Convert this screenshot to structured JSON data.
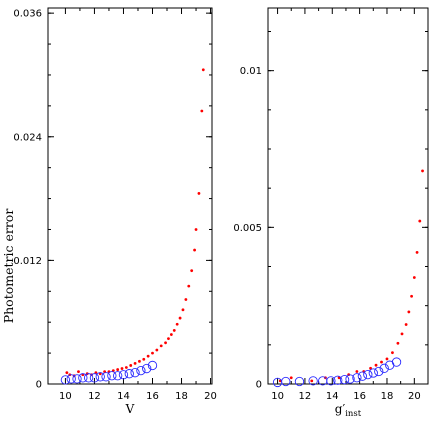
{
  "chart_data": [
    {
      "type": "scatter",
      "panel": "left",
      "xlabel": "V",
      "ylabel": "Photometric  error",
      "xlim": [
        8.8,
        20.1
      ],
      "ylim": [
        0,
        0.0365
      ],
      "xticks": [
        10,
        12,
        14,
        16,
        18,
        20
      ],
      "yticks": [
        0,
        0.012,
        0.024,
        0.036
      ],
      "ytick_labels": [
        "0",
        "0.012",
        "0.024",
        "0.036"
      ],
      "grid": false,
      "series": [
        {
          "marker": "red dot",
          "color": "#ff0000",
          "x": [
            10.1,
            10.3,
            10.6,
            10.9,
            11.2,
            11.5,
            11.8,
            12.1,
            12.4,
            12.7,
            13.0,
            13.3,
            13.6,
            13.9,
            14.2,
            14.5,
            14.8,
            15.1,
            15.4,
            15.7,
            16.0,
            16.3,
            16.6,
            16.9,
            17.1,
            17.3,
            17.5,
            17.7,
            17.9,
            18.1,
            18.3,
            18.5,
            18.7,
            18.9,
            19.0,
            19.2,
            19.4,
            19.5
          ],
          "y": [
            0.0011,
            0.0009,
            0.0008,
            0.0012,
            0.0009,
            0.001,
            0.0009,
            0.0011,
            0.001,
            0.0012,
            0.0012,
            0.0013,
            0.0014,
            0.0015,
            0.0016,
            0.0018,
            0.002,
            0.0022,
            0.0024,
            0.0027,
            0.003,
            0.0033,
            0.0037,
            0.004,
            0.0044,
            0.0048,
            0.0052,
            0.0058,
            0.0064,
            0.0072,
            0.0082,
            0.0095,
            0.011,
            0.013,
            0.015,
            0.0185,
            0.0265,
            0.0305
          ]
        },
        {
          "marker": "blue open circle",
          "color": "#2b2bff",
          "x": [
            10.0,
            10.4,
            10.8,
            11.2,
            11.6,
            12.0,
            12.4,
            12.8,
            13.2,
            13.6,
            14.0,
            14.4,
            14.8,
            15.2,
            15.6,
            16.0
          ],
          "y": [
            0.0004,
            0.0005,
            0.0005,
            0.0006,
            0.0006,
            0.0006,
            0.0007,
            0.0007,
            0.0008,
            0.0008,
            0.0009,
            0.001,
            0.0011,
            0.0013,
            0.0015,
            0.0018
          ]
        }
      ]
    },
    {
      "type": "scatter",
      "panel": "right",
      "xlabel": "g′",
      "xlabel_sub": "inst",
      "ylabel": "",
      "xlim": [
        9.3,
        21.0
      ],
      "ylim": [
        0,
        0.012
      ],
      "xticks": [
        10,
        12,
        14,
        16,
        18,
        20
      ],
      "yticks": [
        0,
        0.005,
        0.01
      ],
      "ytick_labels": [
        "0",
        "0.005",
        "0.01"
      ],
      "grid": false,
      "series": [
        {
          "marker": "red dot",
          "color": "#ff0000",
          "x": [
            10.2,
            11.0,
            12.5,
            13.5,
            14.5,
            15.2,
            15.8,
            16.3,
            16.8,
            17.2,
            17.6,
            18.0,
            18.4,
            18.8,
            19.1,
            19.4,
            19.6,
            19.8,
            20.0,
            20.2,
            20.4,
            20.6
          ],
          "y": [
            0.0001,
            0.0002,
            0.0001,
            0.0002,
            0.0002,
            0.0003,
            0.0004,
            0.0004,
            0.0005,
            0.0006,
            0.0007,
            0.0008,
            0.001,
            0.0013,
            0.0016,
            0.0019,
            0.0023,
            0.0028,
            0.0034,
            0.0042,
            0.0052,
            0.0068
          ]
        },
        {
          "marker": "blue open circle",
          "color": "#2b2bff",
          "x": [
            10.0,
            10.6,
            11.6,
            12.6,
            13.3,
            13.9,
            14.4,
            14.9,
            15.3,
            15.8,
            16.2,
            16.6,
            17.0,
            17.4,
            17.8,
            18.2,
            18.7
          ],
          "y": [
            5e-05,
            8e-05,
            8e-05,
            0.0001,
            0.0001,
            0.0001,
            0.00012,
            0.00014,
            0.00016,
            0.0002,
            0.00025,
            0.0003,
            0.00035,
            0.0004,
            0.0005,
            0.0006,
            0.0007
          ]
        }
      ]
    }
  ]
}
